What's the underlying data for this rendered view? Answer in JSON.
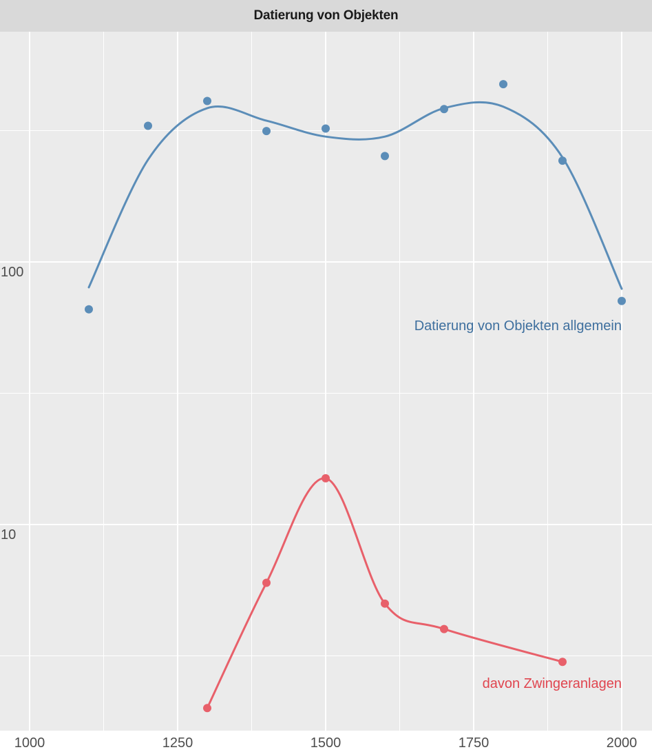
{
  "chart_data": {
    "type": "line",
    "title": "Datierung von Objekten",
    "xlabel": "",
    "ylabel": "",
    "x_scale": "linear",
    "y_scale": "log10",
    "xlim": [
      1000,
      2050
    ],
    "ylim": [
      1.55,
      650
    ],
    "x_ticks": [
      1000,
      1250,
      1500,
      1750,
      2000
    ],
    "x_tick_labels": [
      "1000",
      "1250",
      "1500",
      "1750",
      "2000"
    ],
    "y_ticks": [
      10,
      100
    ],
    "y_tick_labels": [
      "10",
      "100"
    ],
    "grid": true,
    "legend": "none",
    "background": "#ebebeb",
    "series": [
      {
        "name": "Datierung von Objekten allgemein",
        "color": "#5b8db8",
        "label_color": "#3e6f9e",
        "line": "smooth",
        "x": [
          1100,
          1200,
          1300,
          1400,
          1500,
          1600,
          1700,
          1800,
          1900,
          2000
        ],
        "y": [
          66,
          330,
          410,
          315,
          322,
          253,
          382,
          475,
          243,
          71
        ],
        "trend_x": [
          1100,
          1200,
          1300,
          1400,
          1500,
          1600,
          1700,
          1800,
          1900,
          2000
        ],
        "trend_y": [
          80,
          245,
          385,
          345,
          300,
          300,
          385,
          390,
          250,
          79
        ]
      },
      {
        "name": "davon Zwingeranlagen",
        "color": "#e8606a",
        "label_color": "#e0454f",
        "line": "smooth-through-points",
        "x": [
          1300,
          1400,
          1500,
          1600,
          1700,
          1800,
          1900
        ],
        "y": [
          2,
          6,
          15,
          5,
          4,
          null,
          3
        ]
      }
    ]
  }
}
